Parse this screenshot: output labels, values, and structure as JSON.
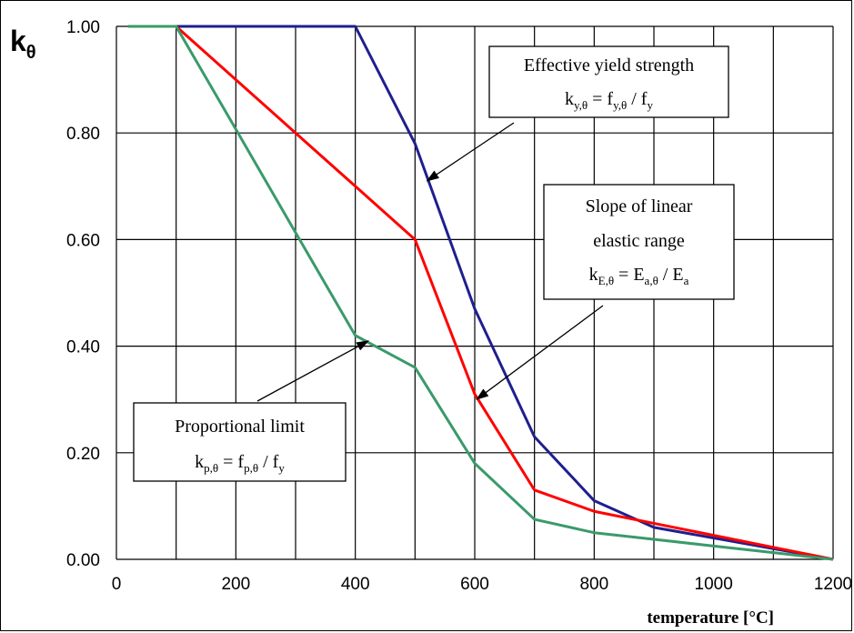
{
  "chart_data": {
    "type": "line",
    "ylabel": "k",
    "ylabel_sub": "θ",
    "xlabel": "temperature [°C]",
    "xlim": [
      0,
      1200
    ],
    "ylim": [
      0,
      1
    ],
    "grid": true,
    "x_ticks": [
      "0",
      "200",
      "400",
      "600",
      "800",
      "1000",
      "1200"
    ],
    "x_tick_values": [
      0,
      200,
      400,
      600,
      800,
      1000,
      1200
    ],
    "y_ticks": [
      "0.00",
      "0.20",
      "0.40",
      "0.60",
      "0.80",
      "1.00"
    ],
    "y_tick_values": [
      0,
      0.2,
      0.4,
      0.6,
      0.8,
      1.0
    ],
    "series": [
      {
        "color": "#1f1f8f",
        "x": [
          20,
          100,
          400,
          500,
          600,
          700,
          800,
          900,
          1000,
          1100,
          1200
        ],
        "y": [
          1.0,
          1.0,
          1.0,
          0.78,
          0.47,
          0.23,
          0.11,
          0.06,
          0.04,
          0.02,
          0.0
        ]
      },
      {
        "color": "#ff0000",
        "x": [
          20,
          100,
          200,
          300,
          400,
          500,
          600,
          700,
          800,
          900,
          1000,
          1100,
          1200
        ],
        "y": [
          1.0,
          1.0,
          0.9,
          0.8,
          0.7,
          0.6,
          0.31,
          0.13,
          0.09,
          0.0675,
          0.045,
          0.0225,
          0.0
        ]
      },
      {
        "color": "#3a9a6a",
        "x": [
          20,
          100,
          200,
          300,
          400,
          500,
          600,
          700,
          800,
          900,
          1000,
          1100,
          1200
        ],
        "y": [
          1.0,
          1.0,
          0.807,
          0.613,
          0.42,
          0.36,
          0.18,
          0.075,
          0.05,
          0.0375,
          0.025,
          0.0125,
          0.0
        ]
      }
    ],
    "annotations": [
      {
        "id": "yield",
        "line1": "Effective yield strength",
        "formula": [
          {
            "t": "k",
            "s": null
          },
          {
            "t": "y,θ",
            "s": "sub"
          },
          {
            "t": " = f",
            "s": null
          },
          {
            "t": "y,θ",
            "s": "sub"
          },
          {
            "t": " / f",
            "s": null
          },
          {
            "t": "y",
            "s": "sub"
          }
        ],
        "arrow_to": [
          520,
          0.71
        ]
      },
      {
        "id": "slope",
        "line1": "Slope of linear",
        "line2": "elastic range",
        "formula": [
          {
            "t": "k",
            "s": null
          },
          {
            "t": "E,θ",
            "s": "sub"
          },
          {
            "t": " = E",
            "s": null
          },
          {
            "t": "a,θ",
            "s": "sub"
          },
          {
            "t": " / E",
            "s": null
          },
          {
            "t": "a",
            "s": "sub"
          }
        ],
        "arrow_to": [
          603,
          0.3
        ]
      },
      {
        "id": "prop",
        "line1": "Proportional limit",
        "formula": [
          {
            "t": "k",
            "s": null
          },
          {
            "t": "p,θ",
            "s": "sub"
          },
          {
            "t": " = f",
            "s": null
          },
          {
            "t": "p,θ",
            "s": "sub"
          },
          {
            "t": " / f",
            "s": null
          },
          {
            "t": "y",
            "s": "sub"
          }
        ],
        "arrow_to": [
          422,
          0.41
        ]
      }
    ]
  }
}
